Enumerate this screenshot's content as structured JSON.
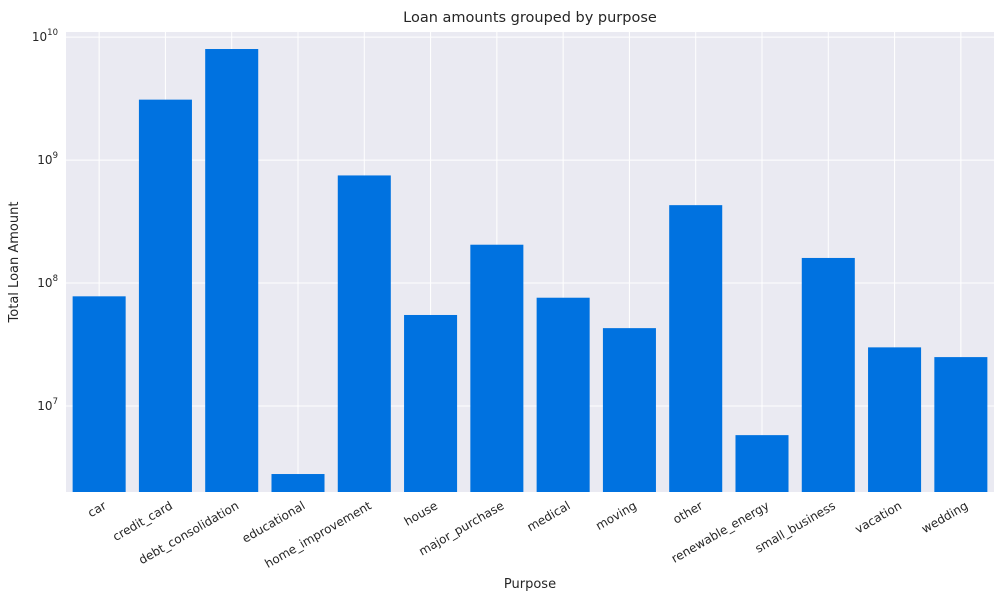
{
  "chart_data": {
    "type": "bar",
    "title": "Loan amounts grouped by purpose",
    "xlabel": "Purpose",
    "ylabel": "Total Loan Amount",
    "yscale": "log",
    "ylim": [
      2000000,
      11000000000
    ],
    "y_ticks": [
      {
        "value": 10000000,
        "base": "10",
        "exp": "7"
      },
      {
        "value": 100000000,
        "base": "10",
        "exp": "8"
      },
      {
        "value": 1000000000,
        "base": "10",
        "exp": "9"
      },
      {
        "value": 10000000000,
        "base": "10",
        "exp": "10"
      }
    ],
    "grid": true,
    "bar_color": "#0072e0",
    "background_color": "#eaeaf2",
    "categories": [
      "car",
      "credit_card",
      "debt_consolidation",
      "educational",
      "home_improvement",
      "house",
      "major_purchase",
      "medical",
      "moving",
      "other",
      "renewable_energy",
      "small_business",
      "vacation",
      "wedding"
    ],
    "values": [
      78000000,
      3100000000,
      8000000000,
      2800000,
      750000000,
      55000000,
      205000000,
      76000000,
      43000000,
      430000000,
      5800000,
      160000000,
      30000000,
      25000000
    ]
  }
}
